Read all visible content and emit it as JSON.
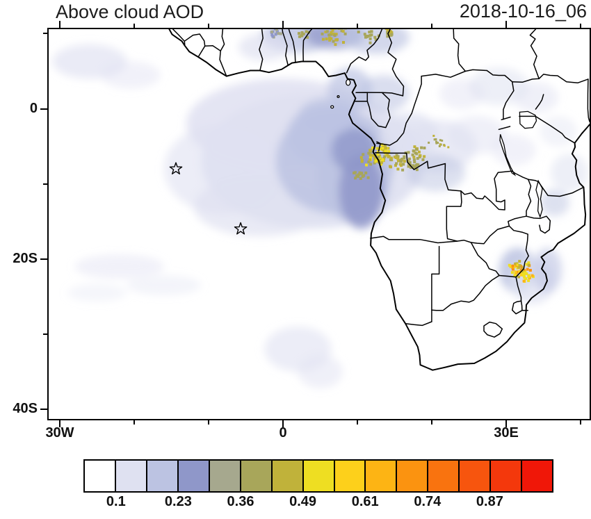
{
  "chart_data": {
    "type": "heatmap",
    "title": "Above cloud AOD",
    "timestamp": "2018-10-16_06",
    "projection": {
      "lon_min": -31.5,
      "lon_max": 41.2,
      "lat_min": -41.3,
      "lat_max": 10.6
    },
    "x_ticks": [
      {
        "lon": -30,
        "label": "30W"
      },
      {
        "lon": 0,
        "label": "0"
      },
      {
        "lon": 30,
        "label": "30E"
      }
    ],
    "y_ticks": [
      {
        "lat": 0,
        "label": "0"
      },
      {
        "lat": -20,
        "label": "20S"
      },
      {
        "lat": -40,
        "label": "40S"
      }
    ],
    "colorbar": {
      "cells": [
        "#ffffff",
        "#dfe1f1",
        "#bcc3e2",
        "#8f97c9",
        "#a6a88e",
        "#a8a65a",
        "#c0b23a",
        "#eede22",
        "#fdd01b",
        "#fdb414",
        "#fb9310",
        "#f9730f",
        "#f7550e",
        "#f4380c",
        "#f01708"
      ],
      "boundary_labels": [
        "0.1",
        "0.23",
        "0.36",
        "0.49",
        "0.61",
        "0.74",
        "0.87"
      ],
      "first_labeled_boundary": 1,
      "label_every": 2
    },
    "station_markers": [
      {
        "lon": -14.4,
        "lat": -8.0
      },
      {
        "lon": -5.7,
        "lat": -16.0
      }
    ],
    "aod_blobs": [
      [
        4,
        -7,
        15,
        9,
        1,
        0.95
      ],
      [
        0,
        -2,
        13,
        6,
        1,
        0.85
      ],
      [
        -8,
        -8,
        8,
        6,
        1,
        0.6
      ],
      [
        -3,
        -13,
        9,
        4,
        1,
        0.7
      ],
      [
        7,
        -7,
        8,
        7,
        2,
        0.85
      ],
      [
        9.5,
        -9,
        5,
        6,
        2,
        0.9
      ],
      [
        5.5,
        -3.5,
        5,
        4,
        2,
        0.8
      ],
      [
        10.5,
        -11,
        3,
        5,
        3,
        0.85
      ],
      [
        9.5,
        -5.5,
        3,
        3,
        3,
        0.8
      ],
      [
        6,
        -1,
        4,
        2.5,
        2,
        0.7
      ],
      [
        2,
        9.7,
        5,
        2.2,
        2,
        0.8
      ],
      [
        7,
        9.9,
        4,
        2,
        3,
        0.7
      ],
      [
        12.5,
        9.5,
        4.5,
        2.2,
        2,
        0.65
      ],
      [
        -2.5,
        8.2,
        3.5,
        1.8,
        1,
        0.7
      ],
      [
        13.5,
        2,
        3.5,
        2.5,
        2,
        0.55
      ],
      [
        17,
        -3.5,
        4,
        3,
        1,
        0.8
      ],
      [
        21,
        -5,
        5,
        3.5,
        1,
        0.65
      ],
      [
        26,
        -3.5,
        4,
        2.5,
        1,
        0.5
      ],
      [
        20.5,
        -8.5,
        4,
        2.5,
        2,
        0.5
      ],
      [
        29,
        3,
        4,
        2.5,
        1,
        0.55
      ],
      [
        34,
        1.5,
        3,
        2,
        1,
        0.5
      ],
      [
        24,
        2,
        3,
        2,
        1,
        0.45
      ],
      [
        31.5,
        -21.5,
        2.5,
        3,
        2,
        0.85
      ],
      [
        33.5,
        -23,
        3,
        3,
        1,
        0.75
      ],
      [
        35.5,
        -21.5,
        2,
        3,
        2,
        0.6
      ],
      [
        38.5,
        -8.5,
        2.5,
        2.5,
        1,
        0.55
      ],
      [
        36.5,
        -12.5,
        2,
        1.8,
        2,
        0.5
      ],
      [
        -26,
        6.3,
        5,
        2.3,
        1,
        0.65
      ],
      [
        -20.5,
        4.5,
        4,
        1.8,
        1,
        0.45
      ],
      [
        -22,
        -21,
        6,
        1.6,
        1,
        0.45
      ],
      [
        -16,
        -23.5,
        5,
        1.3,
        1,
        0.38
      ],
      [
        -25,
        -24.5,
        4,
        1.2,
        1,
        0.3
      ],
      [
        2,
        -32,
        4.5,
        3,
        1,
        0.6
      ],
      [
        5,
        -35,
        3,
        2.2,
        1,
        0.5
      ],
      [
        9,
        2.5,
        3,
        3,
        2,
        0.7
      ],
      [
        31,
        -5.5,
        3,
        2,
        1,
        0.45
      ],
      [
        37,
        -3,
        2.5,
        2,
        1,
        0.4
      ]
    ],
    "aod_speckles": [
      [
        12.5,
        -6.5,
        1.8,
        50,
        [
          5,
          6,
          7
        ],
        4
      ],
      [
        15.8,
        -6.8,
        1.6,
        35,
        [
          5,
          6
        ],
        4
      ],
      [
        18.0,
        -5.8,
        1.2,
        20,
        [
          5,
          6
        ],
        4
      ],
      [
        10.4,
        -8.8,
        1.0,
        14,
        [
          5
        ],
        4
      ],
      [
        6.6,
        9.9,
        1.6,
        30,
        [
          5,
          6
        ],
        4
      ],
      [
        11.6,
        9.7,
        1.3,
        16,
        [
          5
        ],
        4
      ],
      [
        14.2,
        10.0,
        1.0,
        12,
        [
          5,
          6
        ],
        4
      ],
      [
        2.6,
        9.9,
        1.0,
        10,
        [
          5
        ],
        4
      ],
      [
        31.8,
        -21.4,
        1.4,
        45,
        [
          6,
          7,
          8,
          10
        ],
        4
      ],
      [
        32.6,
        -22.6,
        1.0,
        16,
        [
          7,
          9
        ],
        4
      ],
      [
        -0.9,
        10.1,
        0.9,
        16,
        [
          3,
          4
        ],
        4
      ],
      [
        17.5,
        -7.5,
        1.0,
        12,
        [
          5
        ],
        4
      ],
      [
        21,
        -4.5,
        1.3,
        15,
        [
          5,
          6
        ],
        3
      ],
      [
        13.5,
        -5.5,
        1.2,
        20,
        [
          6,
          7
        ],
        4
      ]
    ]
  }
}
